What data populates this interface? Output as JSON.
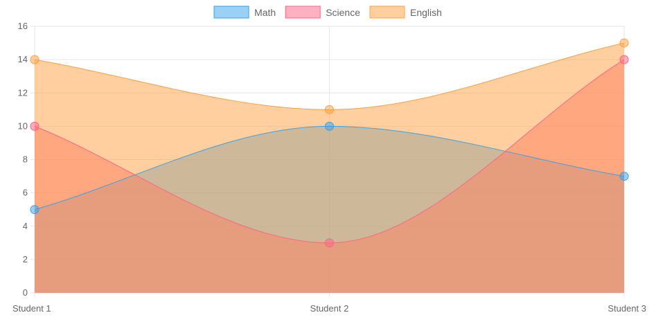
{
  "chart_data": {
    "type": "area",
    "categories": [
      "Student 1",
      "Student 2",
      "Student 3"
    ],
    "series": [
      {
        "name": "Math",
        "values": [
          5,
          10,
          7
        ],
        "color": "#36a2eb"
      },
      {
        "name": "Science",
        "values": [
          10,
          3,
          14
        ],
        "color": "#ff6384"
      },
      {
        "name": "English",
        "values": [
          14,
          11,
          15
        ],
        "color": "#ff9f40"
      }
    ],
    "ylim": [
      0,
      16
    ],
    "y_ticks": [
      0,
      2,
      4,
      6,
      8,
      10,
      12,
      14,
      16
    ],
    "grid": true,
    "legend_position": "top",
    "curve": "smooth",
    "stacked": false
  }
}
